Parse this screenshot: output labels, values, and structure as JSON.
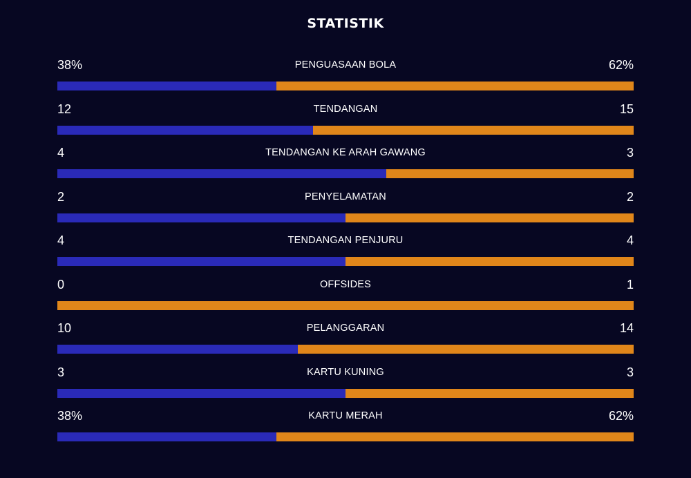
{
  "title": "STATISTIK",
  "colors": {
    "background": "#070722",
    "home": "#2a2ab8",
    "away": "#e0861a",
    "text": "#ffffff"
  },
  "stats": [
    {
      "label": "PENGUASAAN BOLA",
      "home_display": "38%",
      "away_display": "62%",
      "home_share": 0.38
    },
    {
      "label": "TENDANGAN",
      "home_display": "12",
      "away_display": "15",
      "home_share": 0.444
    },
    {
      "label": "TENDANGAN KE ARAH GAWANG",
      "home_display": "4",
      "away_display": "3",
      "home_share": 0.571
    },
    {
      "label": "PENYELAMATAN",
      "home_display": "2",
      "away_display": "2",
      "home_share": 0.5
    },
    {
      "label": "TENDANGAN PENJURU",
      "home_display": "4",
      "away_display": "4",
      "home_share": 0.5
    },
    {
      "label": "OFFSIDES",
      "home_display": "0",
      "away_display": "1",
      "home_share": 0.0
    },
    {
      "label": "PELANGGARAN",
      "home_display": "10",
      "away_display": "14",
      "home_share": 0.417
    },
    {
      "label": "KARTU KUNING",
      "home_display": "3",
      "away_display": "3",
      "home_share": 0.5
    },
    {
      "label": "KARTU MERAH",
      "home_display": "38%",
      "away_display": "62%",
      "home_share": 0.38
    }
  ]
}
